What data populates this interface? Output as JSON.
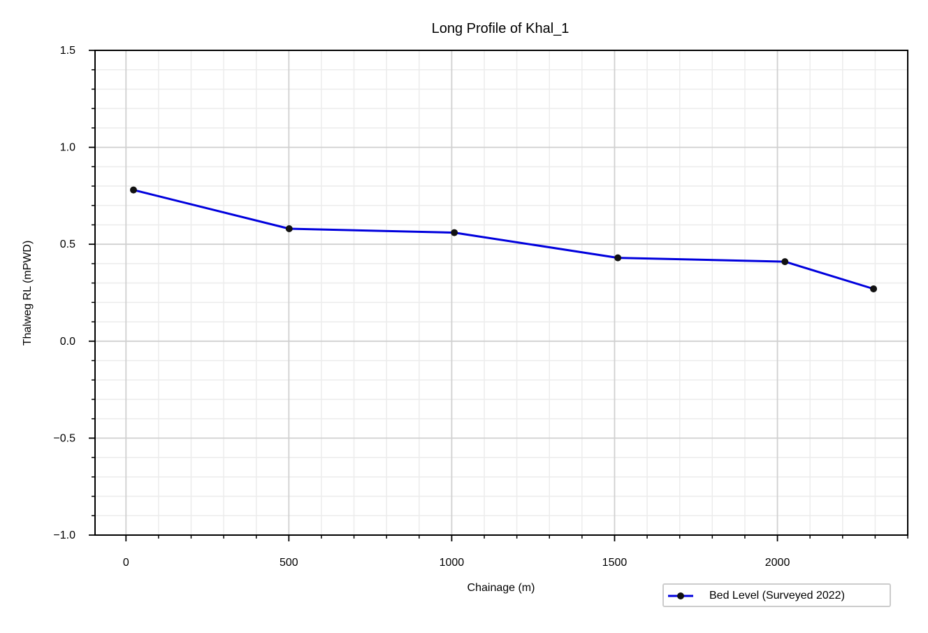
{
  "chart_data": {
    "type": "line",
    "title": "Long Profile of Khal_1",
    "xlabel": "Chainage (m)",
    "ylabel": "Thalweg RL (mPWD)",
    "xlim": [
      -95,
      2400
    ],
    "ylim": [
      -1.0,
      1.5
    ],
    "x_ticks": [
      0,
      500,
      1000,
      1500,
      2000
    ],
    "x_tick_labels": [
      "0",
      "500",
      "1000",
      "1500",
      "2000"
    ],
    "y_ticks": [
      -1.0,
      -0.5,
      0.0,
      0.5,
      1.0,
      1.5
    ],
    "y_tick_labels": [
      "−1.0",
      "−0.5",
      "0.0",
      "0.5",
      "1.0",
      "1.5"
    ],
    "x_minor_step": 100,
    "y_minor_step": 0.1,
    "grid": true,
    "legend_position": "bottom-right, outside axes",
    "series": [
      {
        "name": "Bed Level (Surveyed 2022)",
        "color": "#0000dd",
        "marker_color": "#111111",
        "x": [
          23,
          501,
          1008,
          1510,
          2023,
          2295
        ],
        "y": [
          0.78,
          0.58,
          0.56,
          0.43,
          0.41,
          0.27
        ]
      }
    ]
  },
  "legend": {
    "label": "Bed Level (Surveyed 2022)"
  }
}
